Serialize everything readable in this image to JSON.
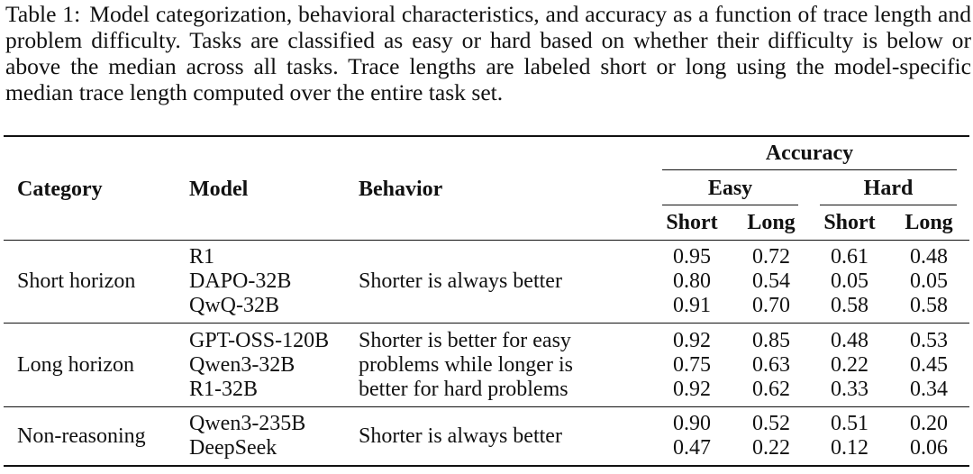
{
  "caption": {
    "label": "Table 1:",
    "text": "Model categorization, behavioral characteristics, and accuracy as a function of trace length and problem difficulty. Tasks are classified as easy or hard based on whether their difficulty is below or above the median across all tasks. Trace lengths are labeled short or long using the model-specific median trace length computed over the entire task set."
  },
  "header": {
    "category": "Category",
    "model": "Model",
    "behavior": "Behavior",
    "accuracy": "Accuracy",
    "easy": "Easy",
    "hard": "Hard",
    "short1": "Short",
    "long1": "Long",
    "short2": "Short",
    "long2": "Long"
  },
  "groups": [
    {
      "category": "Short horizon",
      "behavior": [
        "Shorter is always better"
      ],
      "rows": [
        {
          "model": "R1",
          "vals": [
            "0.95",
            "0.72",
            "0.61",
            "0.48"
          ]
        },
        {
          "model": "DAPO-32B",
          "vals": [
            "0.80",
            "0.54",
            "0.05",
            "0.05"
          ]
        },
        {
          "model": "QwQ-32B",
          "vals": [
            "0.91",
            "0.70",
            "0.58",
            "0.58"
          ]
        }
      ]
    },
    {
      "category": "Long horizon",
      "behavior": [
        "Shorter is better for easy",
        "problems while longer is",
        "better for hard problems"
      ],
      "rows": [
        {
          "model": "GPT-OSS-120B",
          "vals": [
            "0.92",
            "0.85",
            "0.48",
            "0.53"
          ]
        },
        {
          "model": "Qwen3-32B",
          "vals": [
            "0.75",
            "0.63",
            "0.22",
            "0.45"
          ]
        },
        {
          "model": "R1-32B",
          "vals": [
            "0.92",
            "0.62",
            "0.33",
            "0.34"
          ]
        }
      ]
    },
    {
      "category": "Non-reasoning",
      "behavior": [
        "Shorter is always better"
      ],
      "rows": [
        {
          "model": "Qwen3-235B",
          "vals": [
            "0.90",
            "0.52",
            "0.51",
            "0.20"
          ]
        },
        {
          "model": "DeepSeek",
          "vals": [
            "0.47",
            "0.22",
            "0.12",
            "0.06"
          ]
        }
      ]
    }
  ]
}
